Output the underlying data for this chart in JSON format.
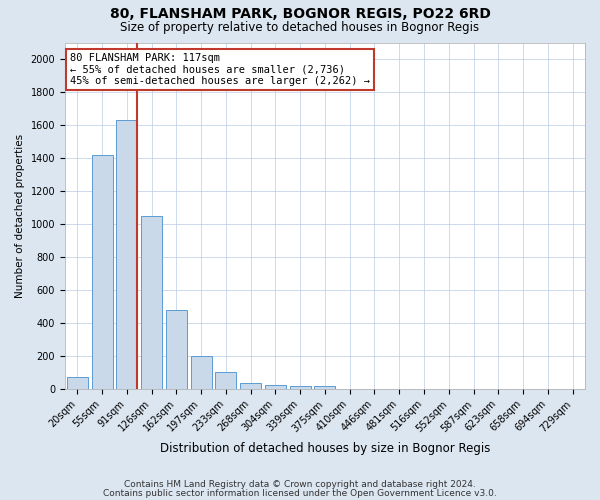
{
  "title": "80, FLANSHAM PARK, BOGNOR REGIS, PO22 6RD",
  "subtitle": "Size of property relative to detached houses in Bognor Regis",
  "xlabel": "Distribution of detached houses by size in Bognor Regis",
  "ylabel": "Number of detached properties",
  "categories": [
    "20sqm",
    "55sqm",
    "91sqm",
    "126sqm",
    "162sqm",
    "197sqm",
    "233sqm",
    "268sqm",
    "304sqm",
    "339sqm",
    "375sqm",
    "410sqm",
    "446sqm",
    "481sqm",
    "516sqm",
    "552sqm",
    "587sqm",
    "623sqm",
    "658sqm",
    "694sqm",
    "729sqm"
  ],
  "values": [
    75,
    1420,
    1630,
    1050,
    480,
    200,
    100,
    35,
    25,
    20,
    15,
    0,
    0,
    0,
    0,
    0,
    0,
    0,
    0,
    0,
    0
  ],
  "bar_color": "#c9d9ea",
  "bar_edge_color": "#5b9bd5",
  "vline_index": 2,
  "vline_color": "#c0392b",
  "annotation_text": "80 FLANSHAM PARK: 117sqm\n← 55% of detached houses are smaller (2,736)\n45% of semi-detached houses are larger (2,262) →",
  "annotation_box_color": "white",
  "annotation_box_edge_color": "#c0392b",
  "ylim": [
    0,
    2100
  ],
  "yticks": [
    0,
    200,
    400,
    600,
    800,
    1000,
    1200,
    1400,
    1600,
    1800,
    2000
  ],
  "footer_line1": "Contains HM Land Registry data © Crown copyright and database right 2024.",
  "footer_line2": "Contains public sector information licensed under the Open Government Licence v3.0.",
  "grid_color": "#b8cce4",
  "background_color": "#dce6f1",
  "plot_bg_color": "white",
  "title_fontsize": 10,
  "subtitle_fontsize": 8.5,
  "xlabel_fontsize": 8.5,
  "ylabel_fontsize": 7.5,
  "tick_fontsize": 7,
  "annotation_fontsize": 7.5,
  "footer_fontsize": 6.5
}
